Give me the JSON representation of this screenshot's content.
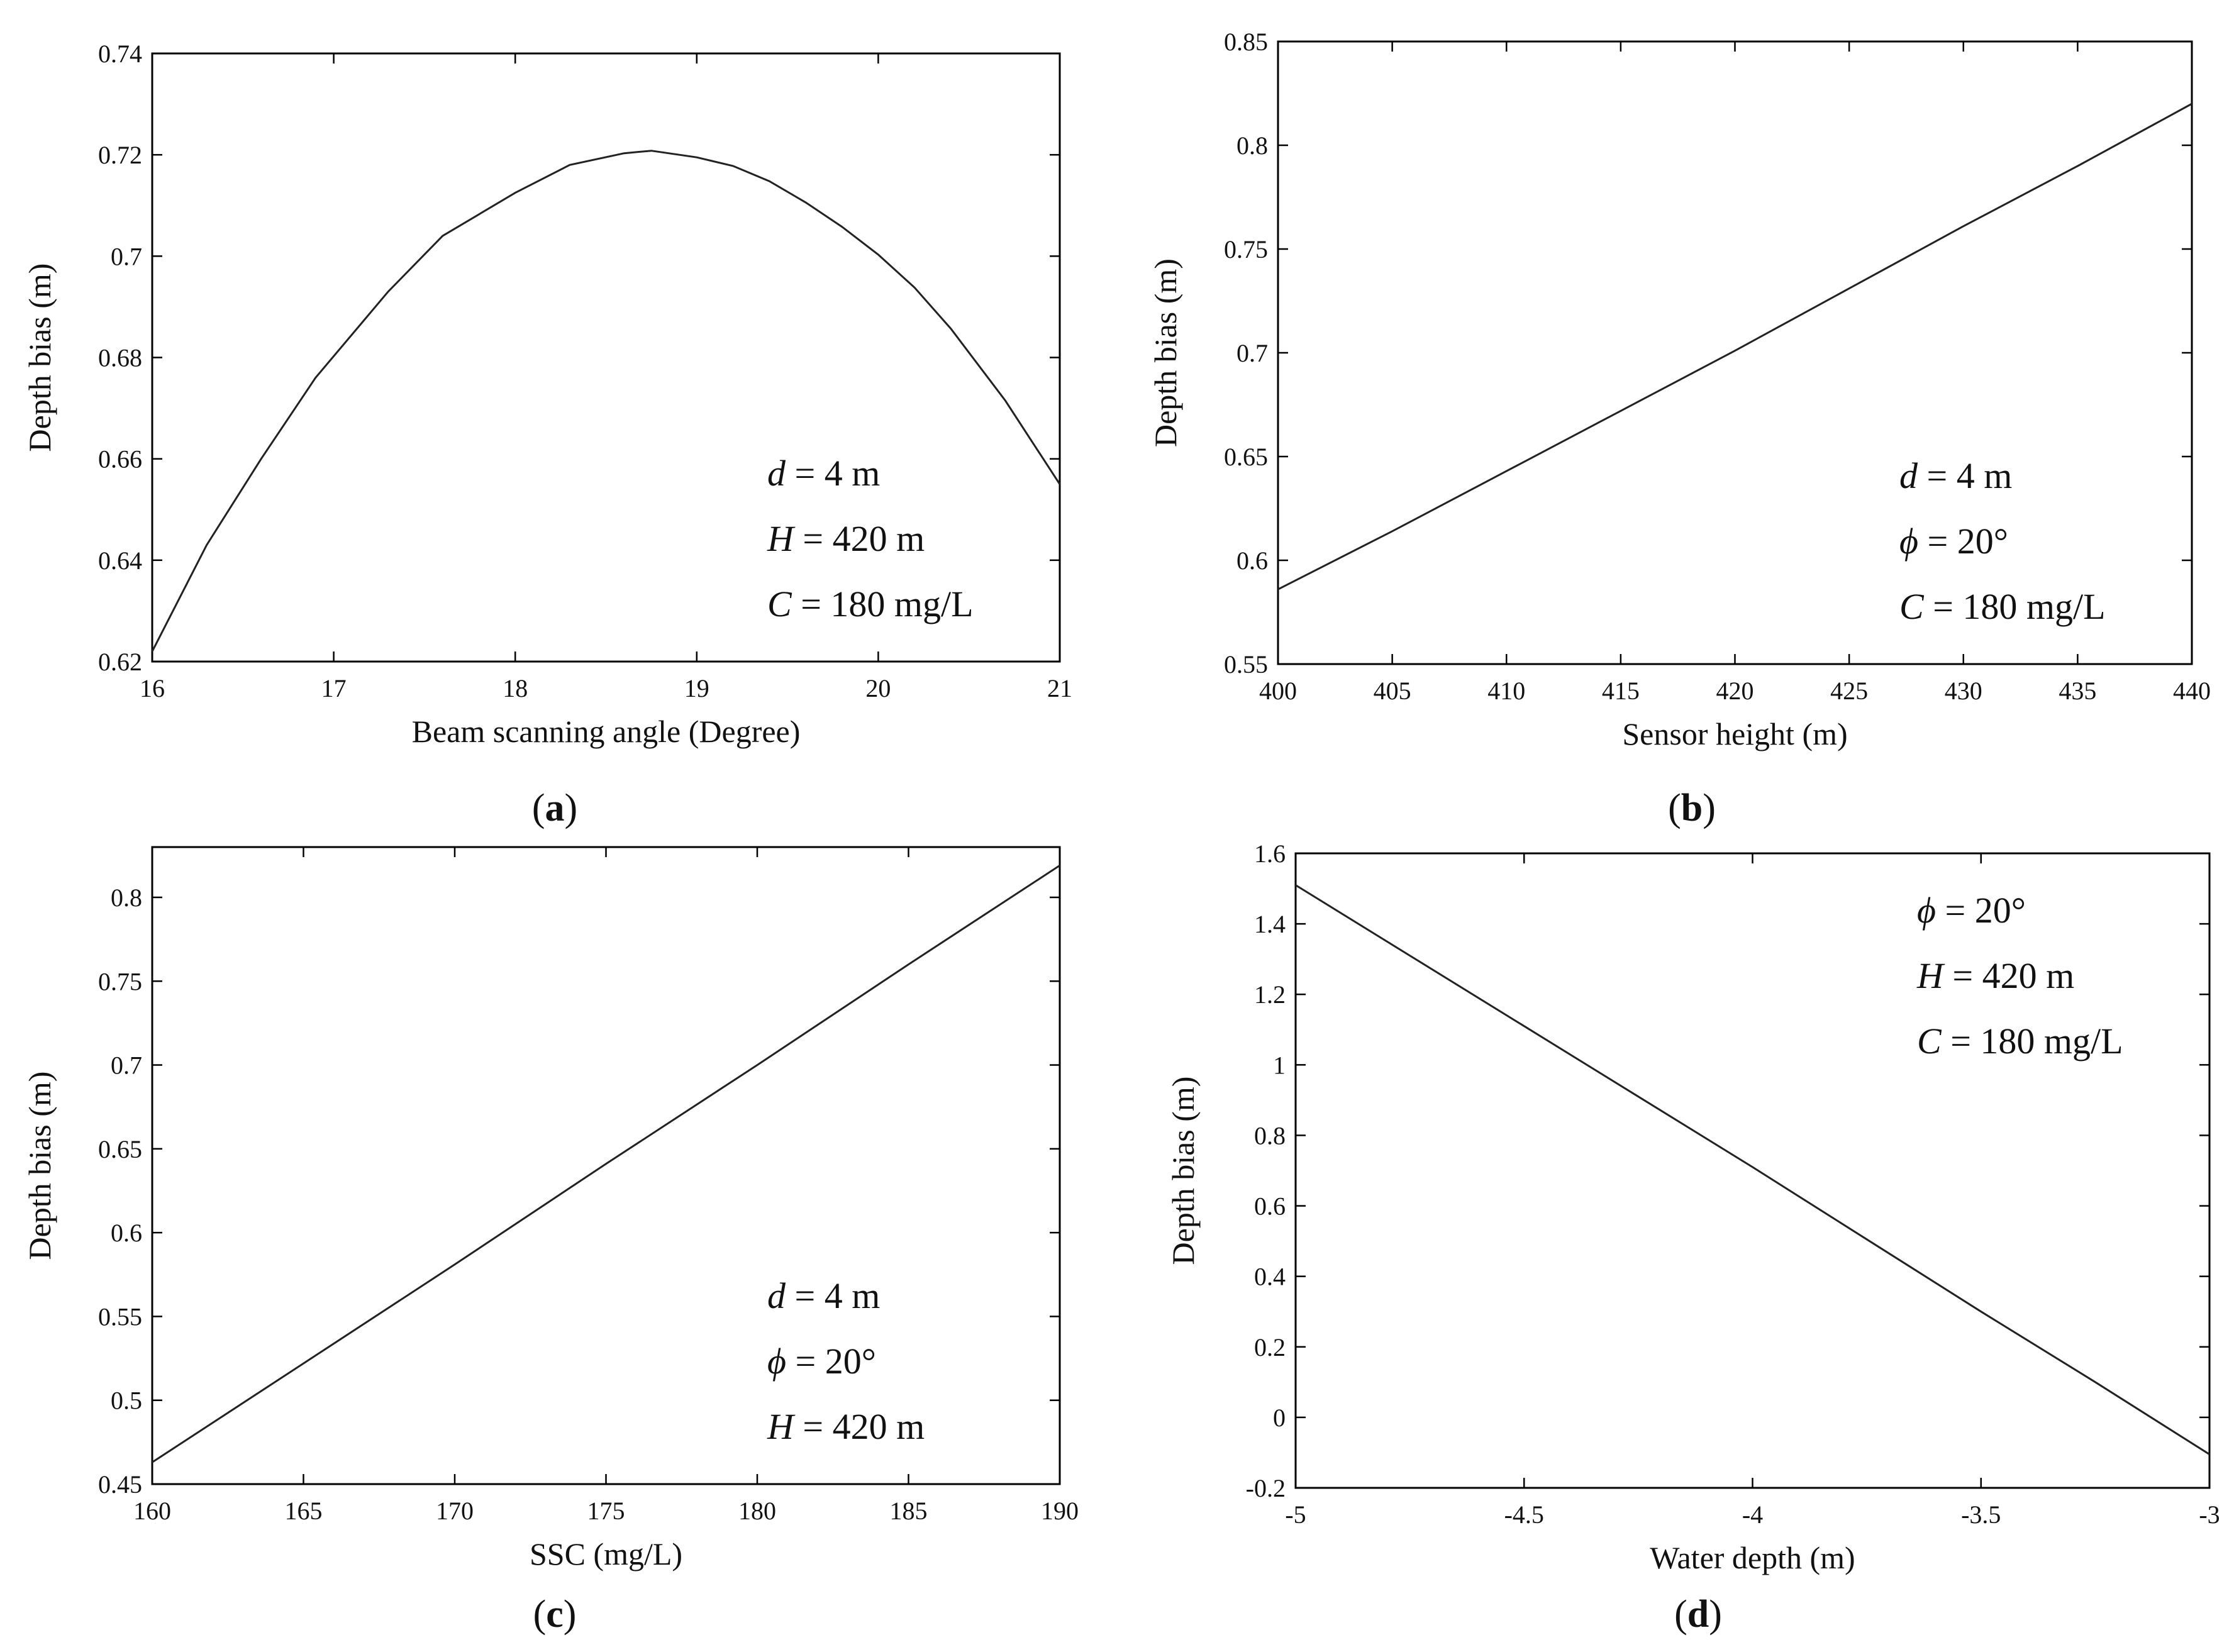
{
  "figure": {
    "colors": {
      "line": "#222222",
      "axis": "#000000",
      "background": "#ffffff"
    }
  },
  "chart_data": [
    {
      "type": "line",
      "panel_label": "a",
      "title": "",
      "xlabel": "Beam scanning angle (Degree)",
      "ylabel": "Depth bias (m)",
      "xlim": [
        16,
        21
      ],
      "ylim": [
        0.62,
        0.74
      ],
      "xticks": [
        16,
        17,
        18,
        19,
        20,
        21
      ],
      "xtick_labels": [
        "16",
        "17",
        "18",
        "19",
        "20",
        "21"
      ],
      "yticks": [
        0.62,
        0.64,
        0.66,
        0.68,
        0.7,
        0.72,
        0.74
      ],
      "ytick_labels": [
        "0.62",
        "0.64",
        "0.66",
        "0.68",
        "0.7",
        "0.72",
        "0.74"
      ],
      "annotations": [
        {
          "var": "d",
          "rest": " = 4 m"
        },
        {
          "var": "H",
          "rest": " = 420 m"
        },
        {
          "var": "C",
          "rest": " = 180 mg/L"
        }
      ],
      "annotation_position": "bottom-right",
      "series": [
        {
          "name": "Depth bias",
          "x": [
            16,
            16.3,
            16.6,
            16.9,
            17.3,
            17.6,
            18.0,
            18.3,
            18.6,
            18.75,
            19.0,
            19.2,
            19.4,
            19.6,
            19.8,
            20.0,
            20.2,
            20.4,
            20.7,
            21.0
          ],
          "y": [
            0.622,
            0.643,
            0.66,
            0.676,
            0.693,
            0.704,
            0.7125,
            0.718,
            0.7203,
            0.7208,
            0.7195,
            0.7178,
            0.7148,
            0.7106,
            0.7058,
            0.7003,
            0.6938,
            0.6857,
            0.6715,
            0.655
          ]
        }
      ]
    },
    {
      "type": "line",
      "panel_label": "b",
      "title": "",
      "xlabel": "Sensor height (m)",
      "ylabel": "Depth bias (m)",
      "xlim": [
        400,
        440
      ],
      "ylim": [
        0.55,
        0.85
      ],
      "xticks": [
        400,
        405,
        410,
        415,
        420,
        425,
        430,
        435,
        440
      ],
      "xtick_labels": [
        "400",
        "405",
        "410",
        "415",
        "420",
        "425",
        "430",
        "435",
        "440"
      ],
      "yticks": [
        0.55,
        0.6,
        0.65,
        0.7,
        0.75,
        0.8,
        0.85
      ],
      "ytick_labels": [
        "0.55",
        "0.6",
        "0.65",
        "0.7",
        "0.75",
        "0.8",
        "0.85"
      ],
      "annotations": [
        {
          "var": "d",
          "rest": " = 4 m"
        },
        {
          "var": "ϕ",
          "rest": " = 20°"
        },
        {
          "var": "C",
          "rest": " = 180 mg/L"
        }
      ],
      "annotation_position": "bottom-right",
      "series": [
        {
          "name": "Depth bias",
          "x": [
            400,
            405,
            410,
            415,
            420,
            425,
            430,
            435,
            440
          ],
          "y": [
            0.586,
            0.614,
            0.643,
            0.672,
            0.701,
            0.731,
            0.761,
            0.79,
            0.82
          ]
        }
      ]
    },
    {
      "type": "line",
      "panel_label": "c",
      "title": "",
      "xlabel": "SSC (mg/L)",
      "ylabel": "Depth bias (m)",
      "xlim": [
        160,
        190
      ],
      "ylim": [
        0.45,
        0.83
      ],
      "xticks": [
        160,
        165,
        170,
        175,
        180,
        185,
        190
      ],
      "xtick_labels": [
        "160",
        "165",
        "170",
        "175",
        "180",
        "185",
        "190"
      ],
      "yticks": [
        0.45,
        0.5,
        0.55,
        0.6,
        0.65,
        0.7,
        0.75,
        0.8
      ],
      "ytick_labels": [
        "0.45",
        "0.5",
        "0.55",
        "0.6",
        "0.65",
        "0.7",
        "0.75",
        "0.8"
      ],
      "annotations": [
        {
          "var": "d",
          "rest": " = 4 m"
        },
        {
          "var": "ϕ",
          "rest": " = 20°"
        },
        {
          "var": "H",
          "rest": " = 420 m"
        }
      ],
      "annotation_position": "bottom-right",
      "series": [
        {
          "name": "Depth bias",
          "x": [
            160,
            165,
            170,
            175,
            180,
            185,
            190
          ],
          "y": [
            0.463,
            0.522,
            0.581,
            0.641,
            0.7,
            0.76,
            0.819
          ]
        }
      ]
    },
    {
      "type": "line",
      "panel_label": "d",
      "title": "",
      "xlabel": "Water depth (m)",
      "ylabel": "Depth bias (m)",
      "xlim": [
        -5,
        -3
      ],
      "ylim": [
        -0.2,
        1.6
      ],
      "xticks": [
        -5,
        -4.5,
        -4,
        -3.5,
        -3
      ],
      "xtick_labels": [
        "-5",
        "-4.5",
        "-4",
        "-3.5",
        "-3"
      ],
      "yticks": [
        -0.2,
        0,
        0.2,
        0.4,
        0.6,
        0.8,
        1,
        1.2,
        1.4,
        1.6
      ],
      "ytick_labels": [
        "-0.2",
        "0",
        "0.2",
        "0.4",
        "0.6",
        "0.8",
        "1",
        "1.2",
        "1.4",
        "1.6"
      ],
      "annotations": [
        {
          "var": "ϕ",
          "rest": " = 20°"
        },
        {
          "var": "H",
          "rest": " = 420 m"
        },
        {
          "var": "C",
          "rest": " = 180 mg/L"
        }
      ],
      "annotation_position": "top-right",
      "series": [
        {
          "name": "Depth bias",
          "x": [
            -5,
            -4.75,
            -4.5,
            -4.25,
            -4,
            -3.75,
            -3.5,
            -3.25,
            -3
          ],
          "y": [
            1.51,
            1.31,
            1.11,
            0.91,
            0.71,
            0.505,
            0.3,
            0.1,
            -0.105
          ]
        }
      ]
    }
  ]
}
